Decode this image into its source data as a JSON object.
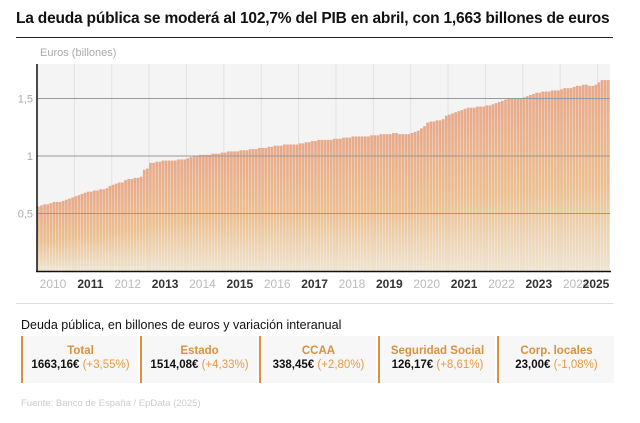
{
  "title": "La deuda pública se moderá al 102,7% del PIB en abril, con 1,663 billones de euros",
  "summary": {
    "subtitle": "Deuda pública, en billones de euros y variación interanual",
    "cards": [
      {
        "label": "Total",
        "value": "1663,16€",
        "change": "(+3,55%)"
      },
      {
        "label": "Estado",
        "value": "1514,08€",
        "change": "(+4,33%)"
      },
      {
        "label": "CCAA",
        "value": "338,45€",
        "change": "(+2,80%)"
      },
      {
        "label": "Seguridad Social",
        "value": "126,17€",
        "change": "(+8,61%)"
      },
      {
        "label": "Corp. locales",
        "value": "23,00€",
        "change": "(-1,08%)"
      }
    ]
  },
  "source": "Fuente: Banco de España / EpData (2025)",
  "colors": {
    "accent": "#d9913f",
    "bar_top": "#e8a98a",
    "bar_mid": "#ecc090",
    "bar_bottom": "#efe2cc",
    "plot_bg": "#f4f4f4"
  },
  "chart_data": {
    "type": "bar",
    "ylabel": "Euros (billones)",
    "ylim": [
      0,
      1.8
    ],
    "yticks": [
      {
        "v": 0.5,
        "label": "0,5"
      },
      {
        "v": 1,
        "label": "1"
      },
      {
        "v": 1.5,
        "label": "1,5"
      }
    ],
    "grid": true,
    "xticks": [
      {
        "label": "2010",
        "bold": false
      },
      {
        "label": "2011",
        "bold": true
      },
      {
        "label": "2012",
        "bold": false
      },
      {
        "label": "2013",
        "bold": true
      },
      {
        "label": "2014",
        "bold": false
      },
      {
        "label": "2015",
        "bold": true
      },
      {
        "label": "2016",
        "bold": false
      },
      {
        "label": "2017",
        "bold": true
      },
      {
        "label": "2018",
        "bold": false
      },
      {
        "label": "2019",
        "bold": true
      },
      {
        "label": "2020",
        "bold": false
      },
      {
        "label": "2021",
        "bold": true
      },
      {
        "label": "2022",
        "bold": false
      },
      {
        "label": "2023",
        "bold": true
      },
      {
        "label": "2024",
        "bold": false
      },
      {
        "label": "2025",
        "bold": true
      }
    ],
    "monthly_values_by_year": {
      "2010": [
        0.56,
        0.57,
        0.58,
        0.58,
        0.59,
        0.6,
        0.6,
        0.6,
        0.61,
        0.62,
        0.63,
        0.64
      ],
      "2011": [
        0.65,
        0.66,
        0.67,
        0.68,
        0.69,
        0.69,
        0.7,
        0.7,
        0.71,
        0.71,
        0.72,
        0.74
      ],
      "2012": [
        0.75,
        0.76,
        0.77,
        0.77,
        0.79,
        0.8,
        0.8,
        0.81,
        0.81,
        0.82,
        0.88,
        0.89
      ],
      "2013": [
        0.94,
        0.94,
        0.95,
        0.95,
        0.96,
        0.96,
        0.96,
        0.96,
        0.96,
        0.97,
        0.97,
        0.97
      ],
      "2014": [
        0.98,
        0.99,
        1.0,
        1.0,
        1.01,
        1.01,
        1.01,
        1.01,
        1.02,
        1.02,
        1.02,
        1.03
      ],
      "2015": [
        1.03,
        1.04,
        1.04,
        1.04,
        1.04,
        1.05,
        1.05,
        1.05,
        1.06,
        1.06,
        1.06,
        1.07
      ],
      "2016": [
        1.07,
        1.07,
        1.08,
        1.08,
        1.09,
        1.09,
        1.09,
        1.1,
        1.1,
        1.1,
        1.1,
        1.1
      ],
      "2017": [
        1.11,
        1.11,
        1.12,
        1.12,
        1.13,
        1.13,
        1.14,
        1.14,
        1.14,
        1.14,
        1.14,
        1.15
      ],
      "2018": [
        1.15,
        1.15,
        1.16,
        1.16,
        1.16,
        1.17,
        1.17,
        1.17,
        1.17,
        1.17,
        1.17,
        1.18
      ],
      "2019": [
        1.18,
        1.18,
        1.19,
        1.19,
        1.19,
        1.19,
        1.2,
        1.2,
        1.19,
        1.19,
        1.19,
        1.19
      ],
      "2020": [
        1.2,
        1.21,
        1.22,
        1.24,
        1.26,
        1.29,
        1.3,
        1.3,
        1.31,
        1.31,
        1.32,
        1.35
      ],
      "2021": [
        1.36,
        1.37,
        1.38,
        1.39,
        1.4,
        1.41,
        1.42,
        1.42,
        1.42,
        1.43,
        1.43,
        1.43
      ],
      "2022": [
        1.44,
        1.44,
        1.45,
        1.46,
        1.47,
        1.48,
        1.49,
        1.5,
        1.5,
        1.5,
        1.5,
        1.5
      ],
      "2023": [
        1.51,
        1.52,
        1.53,
        1.54,
        1.55,
        1.55,
        1.56,
        1.56,
        1.56,
        1.57,
        1.57,
        1.57
      ],
      "2024": [
        1.58,
        1.59,
        1.59,
        1.59,
        1.6,
        1.61,
        1.61,
        1.62,
        1.62,
        1.61,
        1.61,
        1.62
      ],
      "2025": [
        1.64,
        1.66,
        1.66,
        1.66
      ]
    }
  }
}
